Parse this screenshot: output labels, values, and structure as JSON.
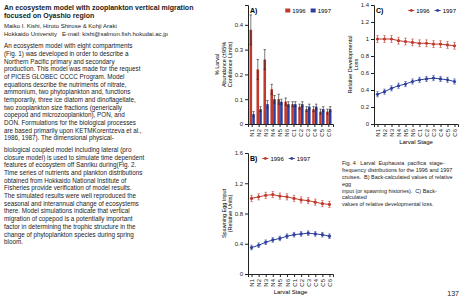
{
  "chart_data": [
    {
      "type": "bar",
      "title": "A)",
      "categories": [
        "N1",
        "N2",
        "N3",
        "N4",
        "N5",
        "N6",
        "C1",
        "C2",
        "C3",
        "C4",
        "C5",
        "C6"
      ],
      "series": [
        {
          "name": "1996",
          "color": "#c0392b",
          "values": [
            0.38,
            0.22,
            0.26,
            0.14,
            0.1,
            0.09,
            0.08,
            0.07,
            0.06,
            0.06,
            0.05,
            0.05
          ],
          "errors": [
            0.06,
            0.04,
            0.04,
            0.02,
            0.02,
            0.015,
            0.01,
            0.01,
            0.01,
            0.01,
            0.01,
            0.01
          ]
        },
        {
          "name": "1997",
          "color": "#2c3e9e",
          "values": [
            0.04,
            0.06,
            0.08,
            0.1,
            0.09,
            0.08,
            0.08,
            0.08,
            0.07,
            0.07,
            0.06,
            0.06
          ],
          "errors": [
            0.01,
            0.01,
            0.015,
            0.015,
            0.01,
            0.01,
            0.01,
            0.01,
            0.01,
            0.01,
            0.01,
            0.01
          ]
        }
      ],
      "y_label": "% Larval\nAbundance (±95%\nConfidence Limits)",
      "ylim": [
        0,
        0.48
      ],
      "yticks": [
        0,
        0.1,
        0.2,
        0.3,
        0.4
      ],
      "legend": "upper right",
      "grid": false
    },
    {
      "type": "line",
      "title": "B)",
      "categories": [
        "N1",
        "N2",
        "N3",
        "N4",
        "N5",
        "N6",
        "C1",
        "C2",
        "C3",
        "C4",
        "C5",
        "C6"
      ],
      "series": [
        {
          "name": "1996",
          "color": "#c0392b",
          "marker": "circle",
          "values": [
            1.0,
            1.02,
            1.04,
            1.05,
            1.03,
            1.02,
            1.0,
            0.98,
            0.97,
            0.95,
            0.93,
            0.92
          ],
          "errors": [
            0.04,
            0.04,
            0.04,
            0.04,
            0.04,
            0.04,
            0.04,
            0.04,
            0.04,
            0.04,
            0.04,
            0.04
          ]
        },
        {
          "name": "1997",
          "color": "#2c3e9e",
          "marker": "circle",
          "values": [
            0.35,
            0.38,
            0.42,
            0.45,
            0.47,
            0.5,
            0.52,
            0.53,
            0.54,
            0.53,
            0.52,
            0.5
          ],
          "errors": [
            0.03,
            0.03,
            0.03,
            0.03,
            0.03,
            0.03,
            0.03,
            0.03,
            0.03,
            0.03,
            0.03,
            0.03
          ]
        }
      ],
      "y_label": "Spawning Egg Input\n(Relative Units)",
      "x_label": "Larval Stage",
      "ylim": [
        0,
        1.6
      ],
      "yticks": [
        0,
        0.4,
        0.8,
        1.2,
        1.6
      ],
      "legend": "upper left",
      "grid": false
    },
    {
      "type": "line",
      "title": "C)",
      "categories": [
        "N1",
        "N2",
        "N3",
        "N4",
        "N5",
        "N6",
        "C1",
        "C2",
        "C3",
        "C4",
        "C5",
        "C6"
      ],
      "series": [
        {
          "name": "1996",
          "color": "#c0392b",
          "marker": "circle",
          "values": [
            1.0,
            1.0,
            1.0,
            0.98,
            0.97,
            0.96,
            0.95,
            0.95,
            0.94,
            0.94,
            0.93,
            0.92
          ],
          "errors": [
            0.04,
            0.04,
            0.04,
            0.04,
            0.04,
            0.04,
            0.04,
            0.04,
            0.04,
            0.04,
            0.04,
            0.04
          ]
        },
        {
          "name": "1997",
          "color": "#2c3e9e",
          "marker": "circle",
          "values": [
            0.35,
            0.38,
            0.42,
            0.45,
            0.47,
            0.5,
            0.52,
            0.53,
            0.54,
            0.53,
            0.52,
            0.5
          ],
          "errors": [
            0.03,
            0.03,
            0.03,
            0.03,
            0.03,
            0.03,
            0.03,
            0.03,
            0.03,
            0.03,
            0.03,
            0.03
          ]
        }
      ],
      "y_label": "Relative Developmental\nLoss",
      "x_label": "Larval Stage",
      "ylim": [
        0,
        1.4
      ],
      "yticks": [
        0,
        0.2,
        0.4,
        0.6,
        0.8,
        1,
        1.2,
        1.4
      ],
      "legend": "upper right",
      "grid": false
    }
  ],
  "fig_caption": "Fig. 4   Larval  Euphausia  pacifica  stage-\nfrequency distributions for the 1996 and 1997\ncruises.  B) Back-calculated values of relative egg\ninput (or spawning histories).  C) Back-calculated\nvalues of relative developmental loss.",
  "paper_title": "An ecosystem model with zooplankton vertical migration focused on Oyashio region",
  "author_line": "Maiko I. Kishi, Hiroto Shirose & Kohji Araki",
  "affil_line": "Hokkaido University   E-mail: kishi@salmon.fish.hokudai.ac.jp",
  "body_text": [
    "An ecosystem model with eight compartments\n(Fig. 1) was developed in order to describe a\nNorthern Pacific primary and secondary\nproduction. This model was made for the request\nof PICES GLOBEC CCCC Program. Model\nequations describe the nutriments of nitrate,\nammonium, two phytoplankton and, functions\ntemporarily, three ice diatom and dinoflagellate,\ntwo zooplankton size fractions (generically\ncopepod and microzooplankton), PON, and\nDON. Formulations for the biological processes\nare based primarily upon KETMKorentzeva et al.,\n1986, 1987). The dimensional physical-",
    "biological coupled model including lateral (pro\nclosure model) is used to simulate time dependent\nfeatures of ecosystem off Sanriku during(Fig. 2.\nTime series of nutrients and plankton distributions\nobtained from Hokkaido National Institute of\nFisheries provide verification of model results.\nThe simulated results were well reproduced the\nseasonal and interannual change of ecosystems\nthere. Model simulations indicate that vertical\nmigration of copepod is a potentially important\nfactor in determining the trophic structure in the\nchange of phytoplankton species during spring\nbloom."
  ],
  "page_number": "137"
}
